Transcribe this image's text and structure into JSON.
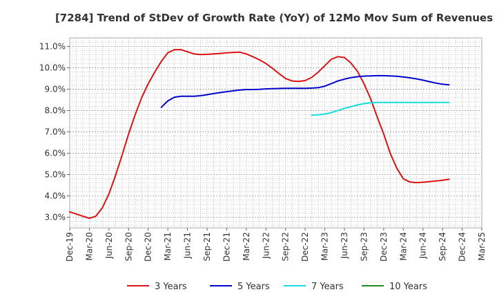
{
  "chart_data": {
    "type": "line",
    "title": "[7284]  Trend of StDev of Growth Rate (YoY) of 12Mo Mov Sum of Revenues",
    "xlabel": "",
    "ylabel": "",
    "ylim": [
      2.5,
      11.4
    ],
    "y_ticks": [
      3.0,
      4.0,
      5.0,
      6.0,
      7.0,
      8.0,
      9.0,
      10.0,
      11.0
    ],
    "y_tick_labels": [
      "3.0%",
      "4.0%",
      "5.0%",
      "6.0%",
      "7.0%",
      "8.0%",
      "9.0%",
      "10.0%",
      "11.0%"
    ],
    "x_tick_labels": [
      "Dec-19",
      "Mar-20",
      "Jun-20",
      "Sep-20",
      "Dec-20",
      "Mar-21",
      "Jun-21",
      "Sep-21",
      "Dec-21",
      "Mar-22",
      "Jun-22",
      "Sep-22",
      "Dec-22",
      "Mar-23",
      "Jun-23",
      "Sep-23",
      "Dec-23",
      "Mar-24",
      "Jun-24",
      "Sep-24",
      "Dec-24",
      "Mar-25"
    ],
    "grid": true,
    "legend_position": "bottom",
    "series": [
      {
        "name": "3 Years",
        "color": "#dd1111",
        "start_index": 0,
        "values": [
          3.25,
          3.15,
          3.05,
          2.95,
          3.05,
          3.45,
          4.1,
          4.95,
          5.9,
          6.9,
          7.8,
          8.6,
          9.25,
          9.8,
          10.3,
          10.7,
          10.85,
          10.85,
          10.75,
          10.65,
          10.62,
          10.63,
          10.65,
          10.67,
          10.7,
          10.72,
          10.73,
          10.65,
          10.52,
          10.37,
          10.2,
          9.97,
          9.73,
          9.5,
          9.38,
          9.36,
          9.4,
          9.55,
          9.8,
          10.1,
          10.4,
          10.52,
          10.48,
          10.22,
          9.83,
          9.25,
          8.55,
          7.7,
          6.9,
          6.0,
          5.3,
          4.8,
          4.65,
          4.62,
          4.64,
          4.67,
          4.7,
          4.73,
          4.78
        ]
      },
      {
        "name": "5 Years",
        "color": "#0000cc",
        "start_index": 14,
        "values": [
          8.15,
          8.45,
          8.62,
          8.67,
          8.67,
          8.67,
          8.69,
          8.74,
          8.79,
          8.84,
          8.88,
          8.92,
          8.96,
          8.98,
          8.98,
          8.99,
          9.01,
          9.02,
          9.03,
          9.04,
          9.04,
          9.04,
          9.04,
          9.05,
          9.07,
          9.14,
          9.26,
          9.38,
          9.47,
          9.54,
          9.58,
          9.61,
          9.62,
          9.63,
          9.63,
          9.62,
          9.6,
          9.57,
          9.53,
          9.48,
          9.42,
          9.35,
          9.28,
          9.23,
          9.2
        ]
      },
      {
        "name": "7 Years",
        "color": "#11dddd",
        "start_index": 37,
        "values": [
          7.78,
          7.8,
          7.83,
          7.9,
          8.0,
          8.1,
          8.18,
          8.26,
          8.32,
          8.36,
          8.38,
          8.38,
          8.38,
          8.38,
          8.38,
          8.38,
          8.38,
          8.38,
          8.38,
          8.38,
          8.38,
          8.38
        ]
      },
      {
        "name": "10 Years",
        "color": "#228822",
        "start_index": 0,
        "values": []
      }
    ]
  }
}
